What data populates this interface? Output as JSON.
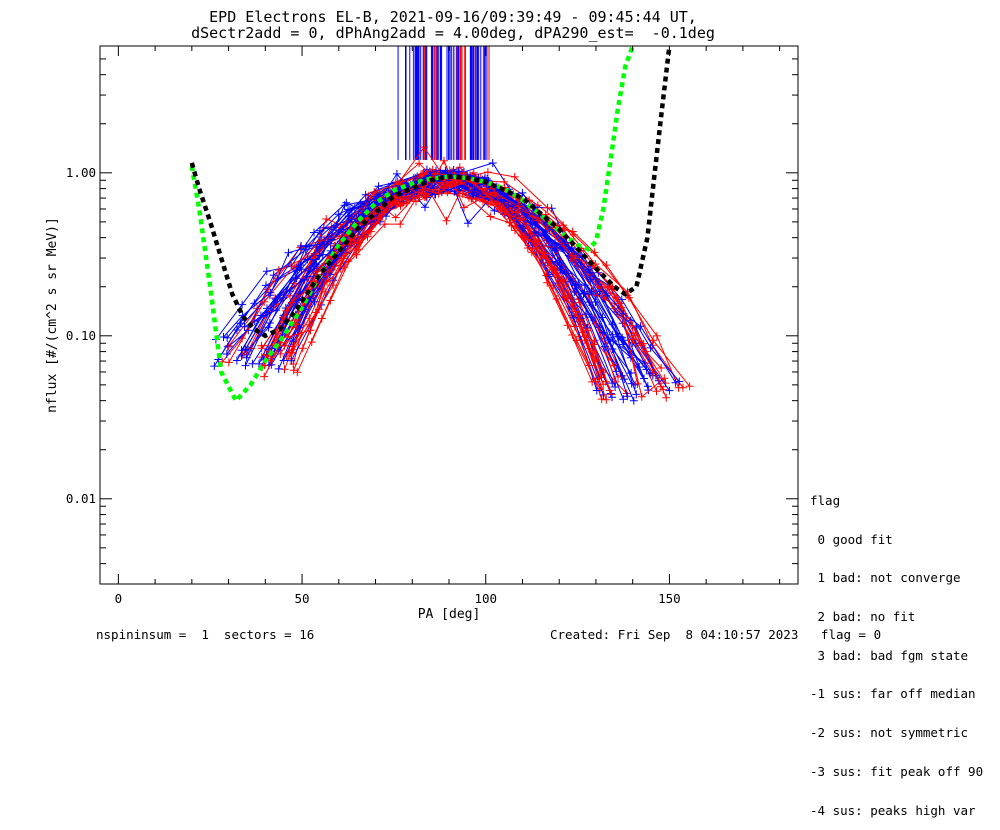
{
  "chart_data": {
    "type": "scatter",
    "title": "EPD Electrons EL-B, 2021-09-16/09:39:49 - 09:45:44 UT,",
    "subtitle": "dSectr2add = 0, dPhAng2add = 4.00deg, dPA290_est=  -0.1deg",
    "xlabel": "PA [deg]",
    "ylabel": "nflux [#/(cm^2 s sr MeV)]",
    "xlim": [
      -5,
      185
    ],
    "ylim": [
      0.003,
      6.0
    ],
    "yscale": "log",
    "xticks": [
      0,
      50,
      100,
      150
    ],
    "xtick_labels": [
      "0",
      "50",
      "100",
      "150"
    ],
    "yticks": [
      0.01,
      0.1,
      1.0
    ],
    "ytick_labels": [
      "0.01",
      "0.10",
      "1.00"
    ],
    "series": [
      {
        "color": "#ff0000",
        "style": "line+plus",
        "profile": {
          "peak_x": 90,
          "peak_y": 0.95,
          "left_x": [
            28,
            52
          ],
          "right_x": [
            128,
            155
          ],
          "n_sweeps": 30
        }
      },
      {
        "color": "#0000ff",
        "style": "line+plus",
        "profile": {
          "peak_x": 90,
          "peak_y": 0.95,
          "left_x": [
            25,
            50
          ],
          "right_x": [
            130,
            152
          ],
          "n_sweeps": 30
        }
      },
      {
        "color": "#00ff00",
        "style": "dashed",
        "x": [
          20,
          22,
          25,
          28,
          32,
          36,
          40,
          45,
          50,
          55,
          60,
          65,
          70,
          75,
          80,
          85,
          90,
          95,
          100,
          105,
          110,
          115,
          120,
          125,
          128,
          130,
          132,
          134,
          136,
          138,
          140
        ],
        "y": [
          1.1,
          0.6,
          0.2,
          0.06,
          0.04,
          0.05,
          0.07,
          0.1,
          0.15,
          0.24,
          0.36,
          0.5,
          0.65,
          0.78,
          0.86,
          0.92,
          0.95,
          0.93,
          0.88,
          0.8,
          0.68,
          0.55,
          0.44,
          0.36,
          0.34,
          0.38,
          0.6,
          1.2,
          2.5,
          4.5,
          6.0
        ]
      },
      {
        "color": "#000000",
        "style": "dashed",
        "x": [
          20,
          22,
          25,
          28,
          31,
          34,
          37,
          40,
          44,
          48,
          55,
          65,
          75,
          85,
          90,
          95,
          100,
          110,
          120,
          130,
          135,
          138,
          141,
          144,
          146,
          148,
          150
        ],
        "y": [
          1.15,
          0.8,
          0.5,
          0.3,
          0.18,
          0.13,
          0.11,
          0.1,
          0.11,
          0.14,
          0.24,
          0.45,
          0.72,
          0.9,
          0.95,
          0.93,
          0.88,
          0.7,
          0.45,
          0.26,
          0.2,
          0.18,
          0.2,
          0.4,
          1.0,
          2.5,
          6.0
        ]
      }
    ],
    "fanout": {
      "x_range": [
        76,
        101
      ],
      "y_bottom": 1.2,
      "colors": [
        "#ff0000",
        "#0000ff"
      ]
    },
    "legend_position": "right"
  },
  "legend": {
    "title": "flag",
    "items": [
      " 0 good fit",
      " 1 bad: not converge",
      " 2 bad: no fit",
      " 3 bad: bad fgm state",
      "-1 sus: far off median",
      "-2 sus: not symmetric",
      "-3 sus: fit peak off 90",
      "-4 sus: peaks high var"
    ]
  },
  "footer": {
    "left": "nspininsum =  1  sectors = 16",
    "right": "Created: Fri Sep  8 04:10:57 2023   flag = 0"
  }
}
